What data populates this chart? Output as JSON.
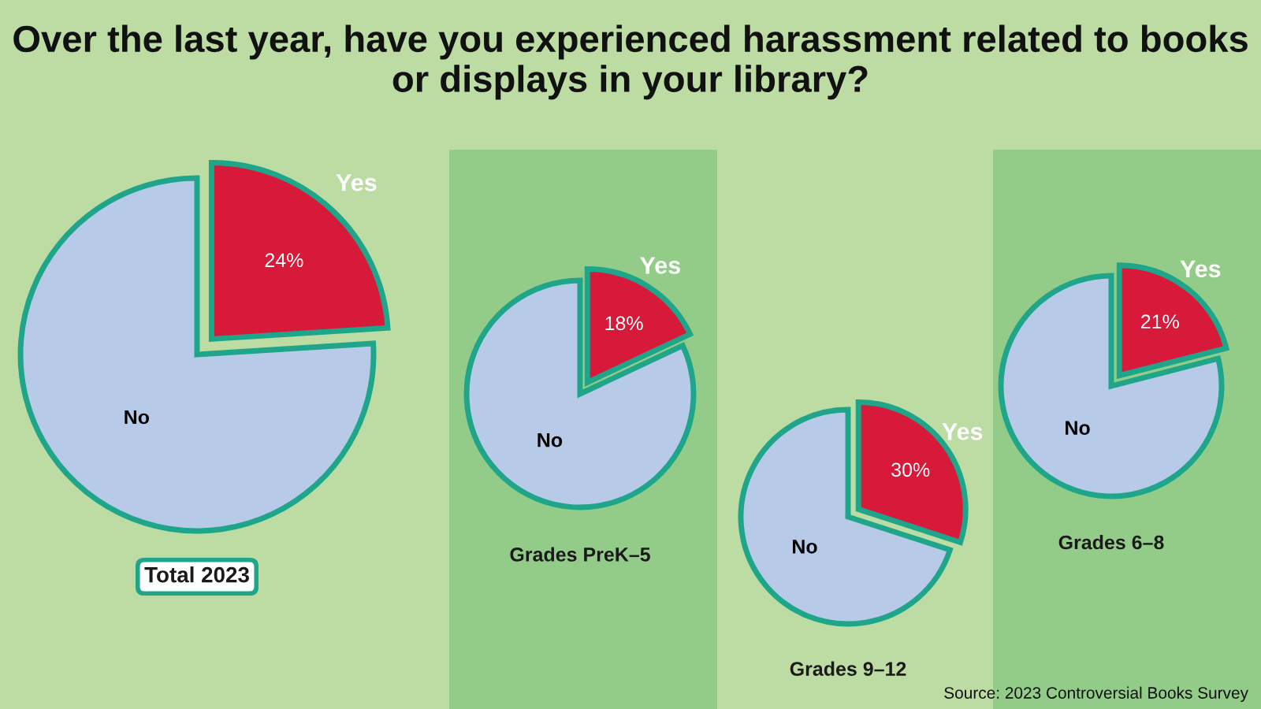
{
  "chart_data": [
    {
      "type": "pie",
      "title": "Over the last year, have you experienced harassment related to books or displays in your library?",
      "xlabel": "Total 2023",
      "categories": [
        "Yes",
        "No"
      ],
      "values": [
        24,
        76
      ],
      "colors": [
        "#d7193a",
        "#b7cbe8"
      ],
      "value_labels": [
        "24%",
        null
      ]
    },
    {
      "type": "pie",
      "xlabel": "Grades PreK–5",
      "categories": [
        "Yes",
        "No"
      ],
      "values": [
        18,
        82
      ],
      "colors": [
        "#d7193a",
        "#b7cbe8"
      ],
      "value_labels": [
        "18%",
        null
      ]
    },
    {
      "type": "pie",
      "xlabel": "Grades 9–12",
      "categories": [
        "Yes",
        "No"
      ],
      "values": [
        30,
        70
      ],
      "colors": [
        "#d7193a",
        "#b7cbe8"
      ],
      "value_labels": [
        "30%",
        null
      ]
    },
    {
      "type": "pie",
      "xlabel": "Grades 6–8",
      "categories": [
        "Yes",
        "No"
      ],
      "values": [
        21,
        79
      ],
      "colors": [
        "#d7193a",
        "#b7cbe8"
      ],
      "value_labels": [
        "21%",
        null
      ],
      "annotations": [
        "Source: 2023 Controversial Books Survey"
      ]
    }
  ]
}
